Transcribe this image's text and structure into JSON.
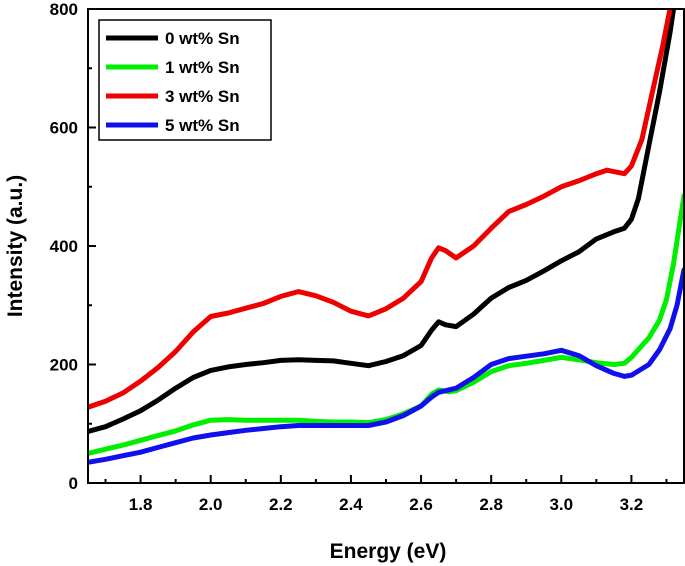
{
  "chart_data": {
    "type": "line",
    "title": "",
    "xlabel": "Energy (eV)",
    "ylabel": "Intensity (a.u.)",
    "xlim": [
      1.65,
      3.35
    ],
    "ylim": [
      0,
      800
    ],
    "xticks": [
      1.8,
      2.0,
      2.2,
      2.4,
      2.6,
      2.8,
      3.0,
      3.2
    ],
    "xtick_labels": [
      "1.8",
      "2.0",
      "2.2",
      "2.4",
      "2.6",
      "2.8",
      "3.0",
      "3.2"
    ],
    "yticks": [
      0,
      200,
      400,
      600,
      800
    ],
    "ytick_labels": [
      "0",
      "200",
      "400",
      "600",
      "800"
    ],
    "grid": false,
    "legend_position": "top-left",
    "series": [
      {
        "name": "0 wt% Sn",
        "color": "#000000",
        "points": [
          [
            1.65,
            87
          ],
          [
            1.7,
            95
          ],
          [
            1.75,
            108
          ],
          [
            1.8,
            122
          ],
          [
            1.85,
            140
          ],
          [
            1.9,
            160
          ],
          [
            1.95,
            178
          ],
          [
            2.0,
            190
          ],
          [
            2.05,
            196
          ],
          [
            2.1,
            200
          ],
          [
            2.15,
            203
          ],
          [
            2.2,
            207
          ],
          [
            2.25,
            208
          ],
          [
            2.3,
            207
          ],
          [
            2.35,
            206
          ],
          [
            2.4,
            202
          ],
          [
            2.45,
            198
          ],
          [
            2.5,
            205
          ],
          [
            2.55,
            215
          ],
          [
            2.6,
            232
          ],
          [
            2.63,
            258
          ],
          [
            2.65,
            272
          ],
          [
            2.67,
            267
          ],
          [
            2.7,
            264
          ],
          [
            2.75,
            285
          ],
          [
            2.8,
            312
          ],
          [
            2.85,
            330
          ],
          [
            2.9,
            342
          ],
          [
            2.95,
            358
          ],
          [
            3.0,
            375
          ],
          [
            3.05,
            390
          ],
          [
            3.1,
            412
          ],
          [
            3.15,
            424
          ],
          [
            3.18,
            430
          ],
          [
            3.2,
            445
          ],
          [
            3.22,
            480
          ],
          [
            3.25,
            570
          ],
          [
            3.28,
            660
          ],
          [
            3.31,
            760
          ],
          [
            3.32,
            800
          ]
        ]
      },
      {
        "name": "1 wt% Sn",
        "color": "#00ee00",
        "points": [
          [
            1.65,
            50
          ],
          [
            1.7,
            57
          ],
          [
            1.75,
            64
          ],
          [
            1.8,
            72
          ],
          [
            1.85,
            80
          ],
          [
            1.9,
            88
          ],
          [
            1.95,
            98
          ],
          [
            2.0,
            106
          ],
          [
            2.05,
            107
          ],
          [
            2.1,
            106
          ],
          [
            2.15,
            106
          ],
          [
            2.2,
            106
          ],
          [
            2.25,
            106
          ],
          [
            2.3,
            104
          ],
          [
            2.35,
            103
          ],
          [
            2.4,
            103
          ],
          [
            2.45,
            102
          ],
          [
            2.5,
            107
          ],
          [
            2.55,
            117
          ],
          [
            2.6,
            130
          ],
          [
            2.63,
            150
          ],
          [
            2.65,
            157
          ],
          [
            2.68,
            154
          ],
          [
            2.7,
            156
          ],
          [
            2.75,
            170
          ],
          [
            2.8,
            188
          ],
          [
            2.85,
            198
          ],
          [
            2.9,
            202
          ],
          [
            2.95,
            207
          ],
          [
            3.0,
            212
          ],
          [
            3.05,
            208
          ],
          [
            3.1,
            203
          ],
          [
            3.15,
            200
          ],
          [
            3.18,
            202
          ],
          [
            3.2,
            212
          ],
          [
            3.25,
            245
          ],
          [
            3.28,
            275
          ],
          [
            3.3,
            310
          ],
          [
            3.32,
            370
          ],
          [
            3.35,
            485
          ]
        ]
      },
      {
        "name": "3 wt% Sn",
        "color": "#ee0000",
        "points": [
          [
            1.65,
            128
          ],
          [
            1.7,
            138
          ],
          [
            1.75,
            152
          ],
          [
            1.8,
            172
          ],
          [
            1.85,
            195
          ],
          [
            1.9,
            222
          ],
          [
            1.95,
            255
          ],
          [
            2.0,
            281
          ],
          [
            2.05,
            287
          ],
          [
            2.1,
            295
          ],
          [
            2.15,
            303
          ],
          [
            2.2,
            315
          ],
          [
            2.25,
            323
          ],
          [
            2.3,
            316
          ],
          [
            2.35,
            305
          ],
          [
            2.4,
            290
          ],
          [
            2.45,
            282
          ],
          [
            2.5,
            294
          ],
          [
            2.55,
            312
          ],
          [
            2.6,
            340
          ],
          [
            2.63,
            380
          ],
          [
            2.65,
            397
          ],
          [
            2.67,
            392
          ],
          [
            2.7,
            380
          ],
          [
            2.75,
            400
          ],
          [
            2.8,
            430
          ],
          [
            2.85,
            458
          ],
          [
            2.9,
            470
          ],
          [
            2.95,
            484
          ],
          [
            3.0,
            500
          ],
          [
            3.05,
            510
          ],
          [
            3.1,
            522
          ],
          [
            3.13,
            528
          ],
          [
            3.18,
            522
          ],
          [
            3.2,
            535
          ],
          [
            3.23,
            580
          ],
          [
            3.26,
            660
          ],
          [
            3.29,
            740
          ],
          [
            3.31,
            800
          ]
        ]
      },
      {
        "name": "5 wt% Sn",
        "color": "#1010ee",
        "points": [
          [
            1.65,
            35
          ],
          [
            1.7,
            40
          ],
          [
            1.75,
            46
          ],
          [
            1.8,
            52
          ],
          [
            1.85,
            60
          ],
          [
            1.9,
            68
          ],
          [
            1.95,
            76
          ],
          [
            2.0,
            81
          ],
          [
            2.05,
            85
          ],
          [
            2.1,
            89
          ],
          [
            2.15,
            92
          ],
          [
            2.2,
            95
          ],
          [
            2.25,
            97
          ],
          [
            2.3,
            97
          ],
          [
            2.35,
            97
          ],
          [
            2.4,
            97
          ],
          [
            2.45,
            97
          ],
          [
            2.5,
            103
          ],
          [
            2.55,
            114
          ],
          [
            2.6,
            130
          ],
          [
            2.63,
            145
          ],
          [
            2.65,
            153
          ],
          [
            2.7,
            160
          ],
          [
            2.75,
            178
          ],
          [
            2.8,
            200
          ],
          [
            2.85,
            210
          ],
          [
            2.9,
            214
          ],
          [
            2.95,
            218
          ],
          [
            3.0,
            224
          ],
          [
            3.05,
            215
          ],
          [
            3.1,
            198
          ],
          [
            3.15,
            185
          ],
          [
            3.18,
            180
          ],
          [
            3.2,
            182
          ],
          [
            3.25,
            200
          ],
          [
            3.28,
            225
          ],
          [
            3.31,
            260
          ],
          [
            3.33,
            300
          ],
          [
            3.35,
            360
          ]
        ]
      }
    ]
  }
}
